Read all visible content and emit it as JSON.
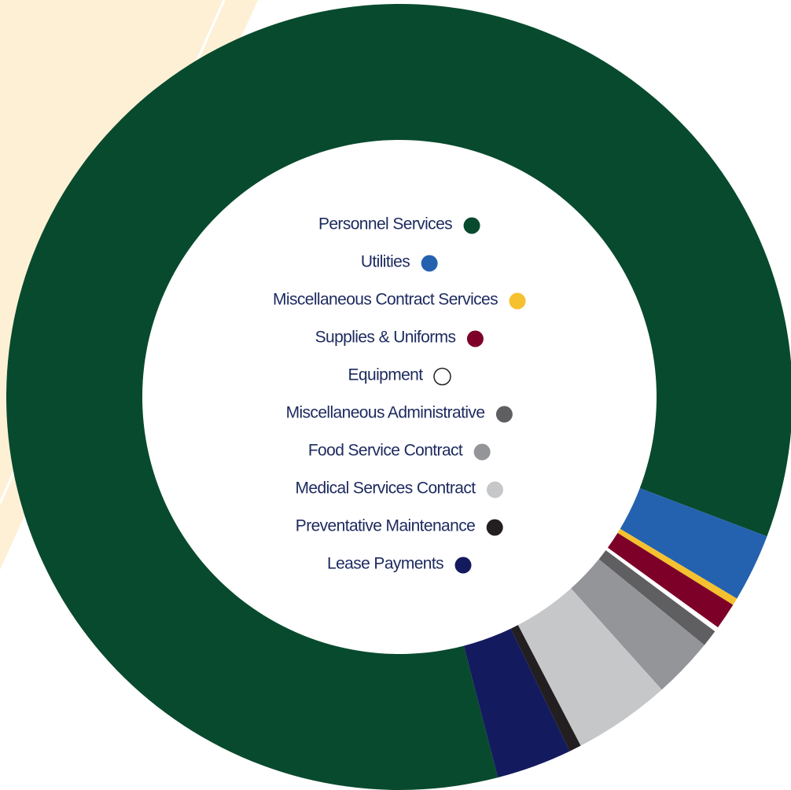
{
  "chart_data": {
    "type": "donut",
    "categories": [
      "Personnel Services",
      "Utilities",
      "Miscellaneous Contract Services",
      "Supplies & Uniforms",
      "Equipment",
      "Miscellaneous Administrative",
      "Food Service Contract",
      "Medical Services Contract",
      "Preventative Maintenance",
      "Lease Payments"
    ],
    "values": [
      84.8,
      2.8,
      0.3,
      1.1,
      0.2,
      0.7,
      2.5,
      4.0,
      0.5,
      3.1
    ],
    "colors": [
      "#084a2e",
      "#2462b0",
      "#f5c12e",
      "#7d0029",
      "#ffffff",
      "#5f5f61",
      "#949599",
      "#c6c7c9",
      "#231f20",
      "#131a5e"
    ]
  }
}
